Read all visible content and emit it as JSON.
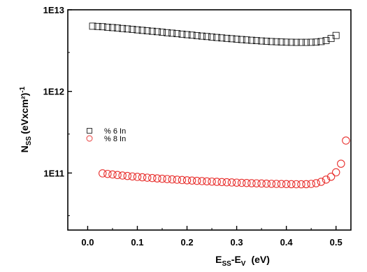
{
  "chart_data": {
    "type": "scatter",
    "title": "",
    "xlabel": "E<sub>SS</sub>-E<sub>V</sub> (eV)",
    "xlabel_parts": {
      "main": "E",
      "sub1": "SS",
      "mid": "-E",
      "sub2": "V",
      "unit": "(eV)"
    },
    "ylabel_parts": {
      "main": "N",
      "sub": "SS",
      "unit": "(eVxcm²)",
      "sup": "-1"
    },
    "xlim": [
      -0.04,
      0.53
    ],
    "ylim": [
      20000000000.0,
      10000000000000.0
    ],
    "yscale": "log",
    "xticks": [
      0.0,
      0.1,
      0.2,
      0.3,
      0.4,
      0.5
    ],
    "xtick_labels": [
      "0.0",
      "0.1",
      "0.2",
      "0.3",
      "0.4",
      "0.5"
    ],
    "yticks": [
      100000000000.0,
      1000000000000.0,
      10000000000000.0
    ],
    "ytick_labels": [
      "1E11",
      "1E12",
      "1E13"
    ],
    "legend_position": "center-left",
    "series": [
      {
        "name": "% 6 In",
        "marker": "square",
        "color": "#000000",
        "x": [
          0.01,
          0.02,
          0.03,
          0.04,
          0.05,
          0.06,
          0.07,
          0.08,
          0.09,
          0.1,
          0.11,
          0.12,
          0.13,
          0.14,
          0.15,
          0.16,
          0.17,
          0.18,
          0.19,
          0.2,
          0.21,
          0.22,
          0.23,
          0.24,
          0.25,
          0.26,
          0.27,
          0.28,
          0.29,
          0.3,
          0.31,
          0.32,
          0.33,
          0.34,
          0.35,
          0.36,
          0.37,
          0.38,
          0.39,
          0.4,
          0.41,
          0.42,
          0.43,
          0.44,
          0.45,
          0.46,
          0.47,
          0.48,
          0.49,
          0.5
        ],
        "y": [
          6300000000000.0,
          6250000000000.0,
          6200000000000.0,
          6120000000000.0,
          6050000000000.0,
          5980000000000.0,
          5900000000000.0,
          5830000000000.0,
          5760000000000.0,
          5680000000000.0,
          5600000000000.0,
          5530000000000.0,
          5460000000000.0,
          5390000000000.0,
          5310000000000.0,
          5240000000000.0,
          5170000000000.0,
          5100000000000.0,
          5030000000000.0,
          4960000000000.0,
          4890000000000.0,
          4830000000000.0,
          4760000000000.0,
          4700000000000.0,
          4640000000000.0,
          4580000000000.0,
          4520000000000.0,
          4470000000000.0,
          4420000000000.0,
          4370000000000.0,
          4320000000000.0,
          4270000000000.0,
          4230000000000.0,
          4190000000000.0,
          4150000000000.0,
          4120000000000.0,
          4080000000000.0,
          4060000000000.0,
          4030000000000.0,
          4010000000000.0,
          4000000000000.0,
          3990000000000.0,
          3990000000000.0,
          3990000000000.0,
          4000000000000.0,
          4020000000000.0,
          4080000000000.0,
          4200000000000.0,
          4450000000000.0,
          4850000000000.0
        ]
      },
      {
        "name": "% 8 In",
        "marker": "circle",
        "color": "#e8312f",
        "x": [
          0.03,
          0.04,
          0.05,
          0.06,
          0.07,
          0.08,
          0.09,
          0.1,
          0.11,
          0.12,
          0.13,
          0.14,
          0.15,
          0.16,
          0.17,
          0.18,
          0.19,
          0.2,
          0.21,
          0.22,
          0.23,
          0.24,
          0.25,
          0.26,
          0.27,
          0.28,
          0.29,
          0.3,
          0.31,
          0.32,
          0.33,
          0.34,
          0.35,
          0.36,
          0.37,
          0.38,
          0.39,
          0.4,
          0.41,
          0.42,
          0.43,
          0.44,
          0.45,
          0.46,
          0.47,
          0.48,
          0.49,
          0.5,
          0.51,
          0.52
        ],
        "y": [
          99000000000.0,
          97500000000.0,
          96000000000.0,
          94500000000.0,
          93200000000.0,
          92000000000.0,
          90800000000.0,
          89700000000.0,
          88700000000.0,
          87700000000.0,
          86800000000.0,
          85900000000.0,
          85100000000.0,
          84300000000.0,
          83500000000.0,
          82800000000.0,
          82100000000.0,
          81400000000.0,
          80800000000.0,
          80200000000.0,
          79600000000.0,
          79000000000.0,
          78500000000.0,
          78000000000.0,
          77500000000.0,
          77000000000.0,
          76600000000.0,
          76200000000.0,
          75800000000.0,
          75400000000.0,
          75000000000.0,
          74700000000.0,
          74400000000.0,
          74100000000.0,
          73800000000.0,
          73600000000.0,
          73400000000.0,
          73200000000.0,
          73000000000.0,
          72900000000.0,
          72800000000.0,
          73000000000.0,
          73600000000.0,
          75000000000.0,
          78000000000.0,
          83000000000.0,
          90000000000.0,
          102000000000.0,
          130000000000.0,
          250000000000.0
        ]
      }
    ]
  }
}
